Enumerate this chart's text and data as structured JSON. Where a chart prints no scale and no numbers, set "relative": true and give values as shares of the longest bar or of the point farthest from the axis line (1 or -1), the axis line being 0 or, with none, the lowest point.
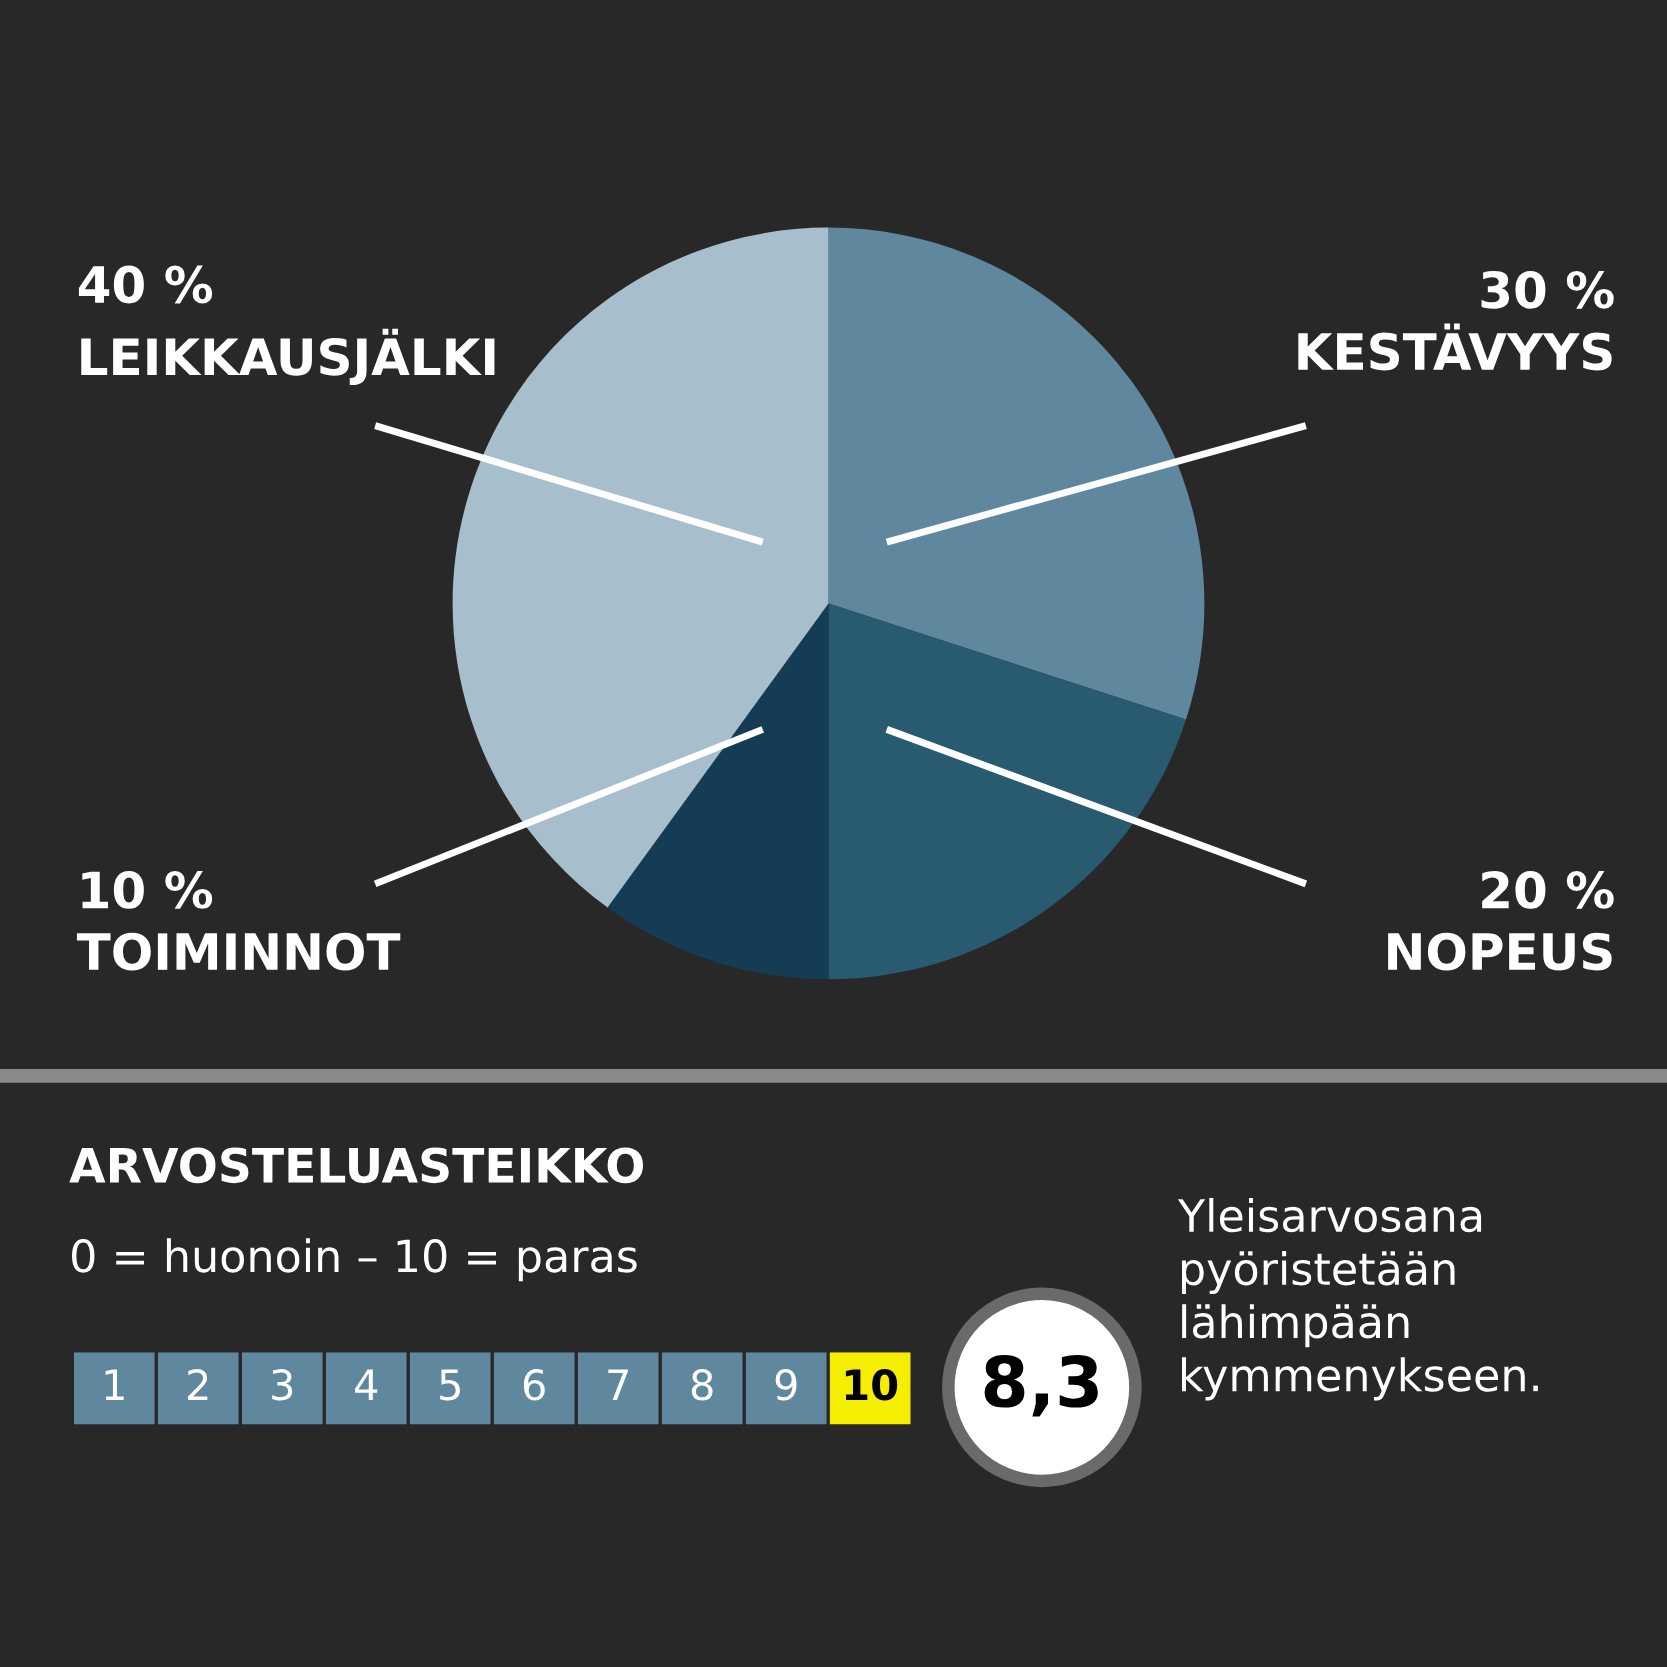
{
  "chart_data": [
    {
      "type": "pie",
      "categories": [
        "KESTÄVYYS",
        "NOPEUS",
        "TOIMINNOT",
        "LEIKKAUSJÄLKI"
      ],
      "values": [
        30,
        20,
        10,
        40
      ],
      "value_labels": [
        "30 %",
        "20 %",
        "10 %",
        "40 %"
      ],
      "colors": [
        "#5f889e",
        "#285a70",
        "#143d55",
        "#a7bfcc"
      ]
    },
    {
      "type": "bar",
      "relative": true,
      "title": "ARVOSTELUASTEIKKO",
      "subtitle": "0 = huonoin – 10 = paras",
      "categories": [
        "1",
        "2",
        "3",
        "4",
        "5",
        "6",
        "7",
        "8",
        "9",
        "10"
      ],
      "values": [
        1,
        1,
        1,
        1,
        1,
        1,
        1,
        1,
        1,
        1
      ],
      "colors": [
        "#5f889e",
        "#5f889e",
        "#5f889e",
        "#5f889e",
        "#5f889e",
        "#5f889e",
        "#5f889e",
        "#5f889e",
        "#5f889e",
        "#f5ee00"
      ],
      "annotations": [
        "8,3",
        "Yleisarvosana pyöristetään lähimpään kymmenykseen."
      ]
    }
  ]
}
